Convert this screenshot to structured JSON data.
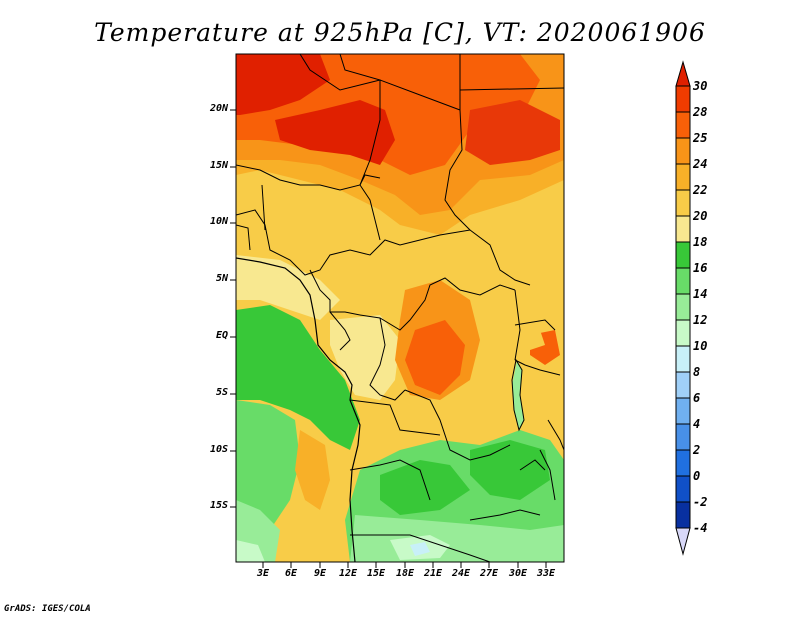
{
  "title": "Temperature at 925hPa [C], VT: 2020061906",
  "credit": "GrADS: IGES/COLA",
  "lat_labels": [
    "20N",
    "15N",
    "10N",
    "5N",
    "EQ",
    "5S",
    "10S",
    "15S"
  ],
  "lon_labels": [
    "3E",
    "6E",
    "9E",
    "12E",
    "15E",
    "18E",
    "21E",
    "24E",
    "27E",
    "30E",
    "33E"
  ],
  "colorbar": {
    "labels": [
      "30",
      "28",
      "25",
      "24",
      "22",
      "20",
      "18",
      "16",
      "14",
      "12",
      "10",
      "8",
      "6",
      "4",
      "2",
      "0",
      "-2",
      "-4"
    ],
    "colors": [
      "#f03c00",
      "#f86008",
      "#f89418",
      "#f8b028",
      "#f8cc48",
      "#f8e890",
      "#f8f8c8",
      "#38c838",
      "#68dc68",
      "#98ec98",
      "#c8fac8",
      "#c8f0f8",
      "#a0d0f8",
      "#70b0f0",
      "#4890e8",
      "#2070e0",
      "#1050c8",
      "#0830a0",
      "#082078"
    ],
    "top_arrow_color": "#e02000",
    "bottom_arrow_color": "#d8d8f8"
  }
}
